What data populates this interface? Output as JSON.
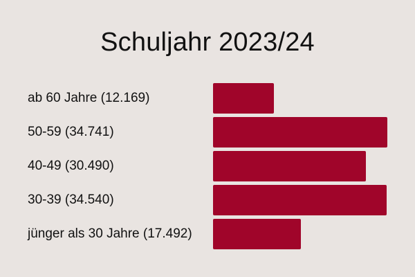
{
  "colors": {
    "background": "#e9e4e1",
    "bar": "#a0052a",
    "text": "#111111"
  },
  "chart_data": {
    "type": "bar",
    "orientation": "horizontal",
    "title": "Schuljahr 2023/24",
    "categories": [
      "ab 60 Jahre (12.169)",
      "50-59 (34.741)",
      "40-49 (30.490)",
      "30-39 (34.540)",
      "jünger als 30 Jahre (17.492)"
    ],
    "values": [
      12169,
      34741,
      30490,
      34540,
      17492
    ],
    "xlim": [
      0,
      34741
    ],
    "grid": false,
    "legend": "none"
  }
}
